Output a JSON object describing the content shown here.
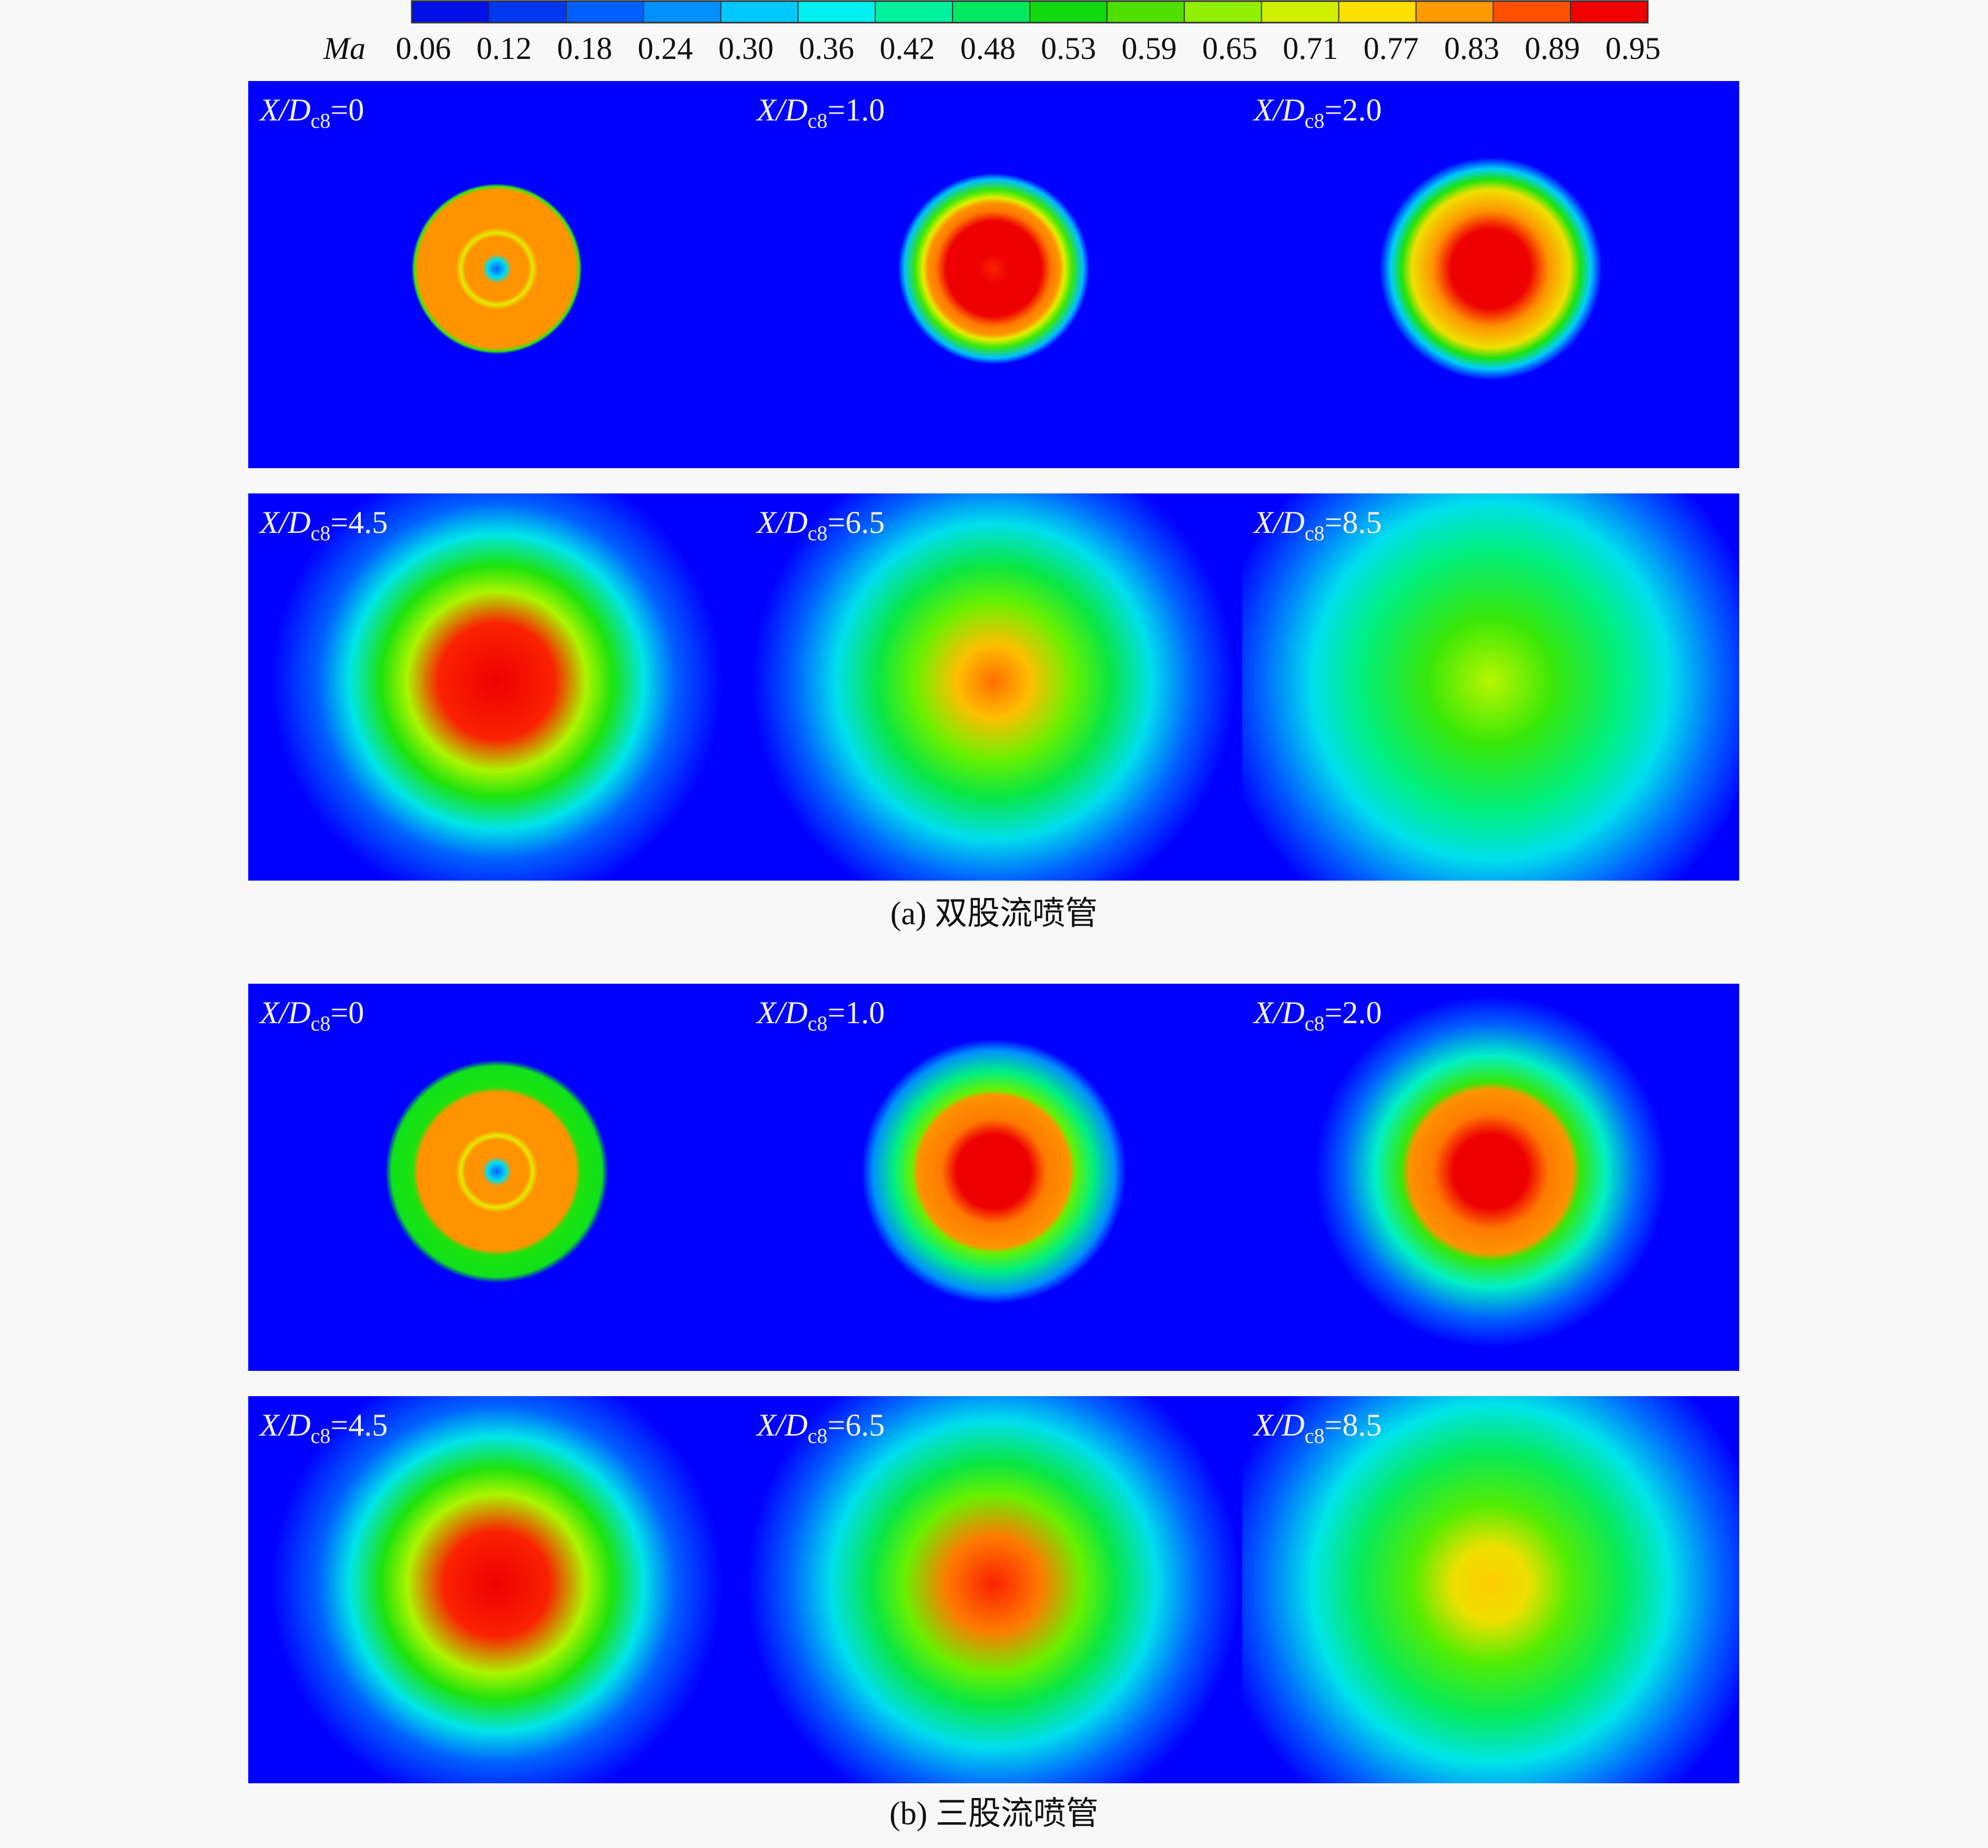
{
  "colorbar": {
    "title": "Ma",
    "tick_labels": [
      "0.06",
      "0.12",
      "0.18",
      "0.24",
      "0.30",
      "0.36",
      "0.42",
      "0.48",
      "0.53",
      "0.59",
      "0.65",
      "0.71",
      "0.77",
      "0.83",
      "0.89",
      "0.95"
    ],
    "colors": [
      "#0010e6",
      "#0038f0",
      "#0060ff",
      "#0090ff",
      "#00c8ff",
      "#00f0f0",
      "#00f0a0",
      "#00e860",
      "#10d810",
      "#50e000",
      "#90f000",
      "#d0f000",
      "#ffe000",
      "#ff9a00",
      "#ff5000",
      "#f00000"
    ]
  },
  "groups": [
    {
      "caption": "(a) 双股流喷管",
      "panels": [
        {
          "variable": "X/D",
          "subscript": "c8",
          "value": "=0"
        },
        {
          "variable": "X/D",
          "subscript": "c8",
          "value": "=1.0"
        },
        {
          "variable": "X/D",
          "subscript": "c8",
          "value": "=2.0"
        },
        {
          "variable": "X/D",
          "subscript": "c8",
          "value": "=4.5"
        },
        {
          "variable": "X/D",
          "subscript": "c8",
          "value": "=6.5"
        },
        {
          "variable": "X/D",
          "subscript": "c8",
          "value": "=8.5"
        }
      ]
    },
    {
      "caption": "(b) 三股流喷管",
      "panels": [
        {
          "variable": "X/D",
          "subscript": "c8",
          "value": "=0"
        },
        {
          "variable": "X/D",
          "subscript": "c8",
          "value": "=1.0"
        },
        {
          "variable": "X/D",
          "subscript": "c8",
          "value": "=2.0"
        },
        {
          "variable": "X/D",
          "subscript": "c8",
          "value": "=4.5"
        },
        {
          "variable": "X/D",
          "subscript": "c8",
          "value": "=6.5"
        },
        {
          "variable": "X/D",
          "subscript": "c8",
          "value": "=8.5"
        }
      ]
    }
  ]
}
